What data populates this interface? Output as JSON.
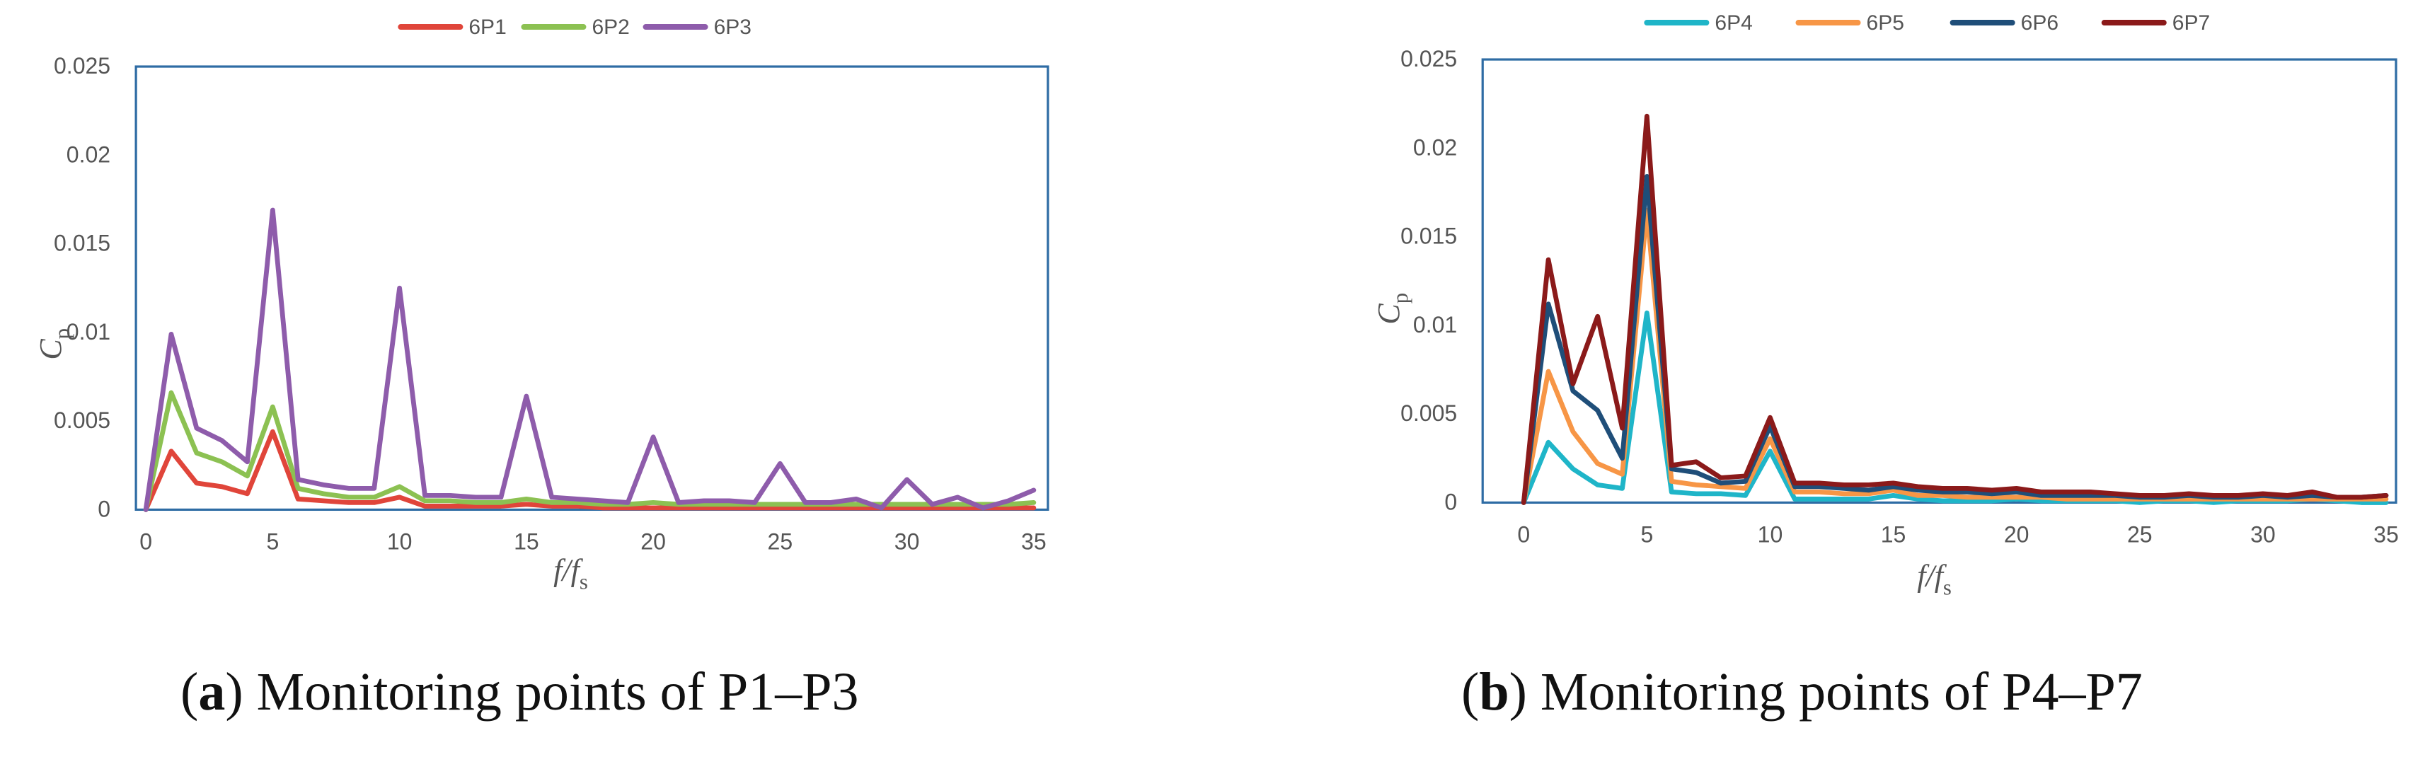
{
  "chart_data": [
    {
      "type": "line",
      "title": "",
      "xlabel": "f/f",
      "xlabel_sub": "s",
      "ylabel": "C",
      "ylabel_sub": "p",
      "xlim": [
        0,
        35
      ],
      "ylim": [
        0,
        0.025
      ],
      "x_ticks": [
        0,
        5,
        10,
        15,
        20,
        25,
        30,
        35
      ],
      "y_ticks": [
        0,
        0.005,
        0.01,
        0.015,
        0.02,
        0.025
      ],
      "y_tick_labels": [
        "0",
        "0.005",
        "0.01",
        "0.015",
        "0.02",
        "0.025"
      ],
      "grid": false,
      "legend_position": "top",
      "x": [
        0,
        1,
        2,
        3,
        4,
        5,
        6,
        7,
        8,
        9,
        10,
        11,
        12,
        13,
        14,
        15,
        16,
        17,
        18,
        19,
        20,
        21,
        22,
        23,
        24,
        25,
        26,
        27,
        28,
        29,
        30,
        31,
        32,
        33,
        34,
        35
      ],
      "series": [
        {
          "name": "6P1",
          "color": "#e0453a",
          "values": [
            0,
            0.0033,
            0.0015,
            0.0013,
            0.0009,
            0.0044,
            0.0006,
            0.0005,
            0.0004,
            0.0004,
            0.0007,
            0.0002,
            0.0002,
            0.0002,
            0.0002,
            0.0003,
            0.0002,
            0.0002,
            0.0001,
            0.0001,
            0.0001,
            0.0001,
            0.0001,
            0.0001,
            0.0001,
            0.0001,
            0.0001,
            0.0001,
            0.0001,
            0.0001,
            0.0001,
            0.0001,
            0.0001,
            0.0001,
            0.0001,
            0.0001
          ]
        },
        {
          "name": "6P2",
          "color": "#8cc152",
          "values": [
            0,
            0.0066,
            0.0032,
            0.0027,
            0.0019,
            0.0058,
            0.0012,
            0.0009,
            0.0007,
            0.0007,
            0.0013,
            0.0005,
            0.0005,
            0.0004,
            0.0004,
            0.0006,
            0.0004,
            0.0004,
            0.0003,
            0.0003,
            0.0004,
            0.0003,
            0.0003,
            0.0003,
            0.0003,
            0.0003,
            0.0003,
            0.0003,
            0.0003,
            0.0003,
            0.0003,
            0.0003,
            0.0003,
            0.0003,
            0.0003,
            0.0004
          ]
        },
        {
          "name": "6P3",
          "color": "#8e5cab",
          "values": [
            0,
            0.0099,
            0.0046,
            0.0039,
            0.0027,
            0.0169,
            0.0017,
            0.0014,
            0.0012,
            0.0012,
            0.0125,
            0.0008,
            0.0008,
            0.0007,
            0.0007,
            0.0064,
            0.0007,
            0.0006,
            0.0005,
            0.0004,
            0.0041,
            0.0004,
            0.0005,
            0.0005,
            0.0004,
            0.0026,
            0.0004,
            0.0004,
            0.0006,
            0.0001,
            0.0017,
            0.0003,
            0.0007,
            0.0001,
            0.0005,
            0.0011
          ]
        }
      ]
    },
    {
      "type": "line",
      "title": "",
      "xlabel": "f/f",
      "xlabel_sub": "s",
      "ylabel": "C",
      "ylabel_sub": "p",
      "xlim": [
        0,
        35
      ],
      "ylim": [
        0,
        0.025
      ],
      "x_ticks": [
        0,
        5,
        10,
        15,
        20,
        25,
        30,
        35
      ],
      "y_ticks": [
        0,
        0.005,
        0.01,
        0.015,
        0.02,
        0.025
      ],
      "y_tick_labels": [
        "0",
        "0.005",
        "0.01",
        "0.015",
        "0.02",
        "0.025"
      ],
      "grid": false,
      "legend_position": "top",
      "x": [
        0,
        1,
        2,
        3,
        4,
        5,
        6,
        7,
        8,
        9,
        10,
        11,
        12,
        13,
        14,
        15,
        16,
        17,
        18,
        19,
        20,
        21,
        22,
        23,
        24,
        25,
        26,
        27,
        28,
        29,
        30,
        31,
        32,
        33,
        34,
        35
      ],
      "series": [
        {
          "name": "6P4",
          "color": "#1fb5c8",
          "values": [
            0,
            0.0034,
            0.0019,
            0.001,
            0.0008,
            0.0107,
            0.0006,
            0.0005,
            0.0005,
            0.0004,
            0.0029,
            0.0002,
            0.0002,
            0.0002,
            0.0002,
            0.0004,
            0.0002,
            0.0001,
            0.0001,
            0.0001,
            0.0002,
            0.0001,
            0.0001,
            0.0001,
            0.0001,
            0.0,
            0.0001,
            0.0001,
            0.0,
            0.0001,
            0.0001,
            0.0001,
            0.0002,
            0.0001,
            0.0,
            0.0
          ]
        },
        {
          "name": "6P5",
          "color": "#f79646",
          "values": [
            0,
            0.0074,
            0.004,
            0.0022,
            0.0016,
            0.0165,
            0.0012,
            0.001,
            0.0009,
            0.0008,
            0.0036,
            0.0006,
            0.0006,
            0.0005,
            0.0005,
            0.0007,
            0.0004,
            0.0004,
            0.0003,
            0.0003,
            0.0003,
            0.0003,
            0.0002,
            0.0002,
            0.0002,
            0.0002,
            0.0002,
            0.0002,
            0.0002,
            0.0002,
            0.0002,
            0.0002,
            0.0002,
            0.0002,
            0.0002,
            0.0002
          ]
        },
        {
          "name": "6P6",
          "color": "#1f4e79",
          "values": [
            0,
            0.0112,
            0.0063,
            0.0052,
            0.0025,
            0.0184,
            0.0019,
            0.0017,
            0.0011,
            0.0012,
            0.0043,
            0.0009,
            0.0009,
            0.0008,
            0.0007,
            0.0009,
            0.0007,
            0.0006,
            0.0006,
            0.0005,
            0.0006,
            0.0004,
            0.0004,
            0.0004,
            0.0004,
            0.0003,
            0.0003,
            0.0004,
            0.0003,
            0.0003,
            0.0004,
            0.0003,
            0.0004,
            0.0003,
            0.0003,
            0.0004
          ]
        },
        {
          "name": "6P7",
          "color": "#8b1a1a",
          "values": [
            0,
            0.0137,
            0.0067,
            0.0105,
            0.0042,
            0.0218,
            0.0021,
            0.0023,
            0.0014,
            0.0015,
            0.0048,
            0.0011,
            0.0011,
            0.001,
            0.001,
            0.0011,
            0.0009,
            0.0008,
            0.0008,
            0.0007,
            0.0008,
            0.0006,
            0.0006,
            0.0006,
            0.0005,
            0.0004,
            0.0004,
            0.0005,
            0.0004,
            0.0004,
            0.0005,
            0.0004,
            0.0006,
            0.0003,
            0.0003,
            0.0004
          ]
        }
      ]
    }
  ],
  "captions": [
    {
      "letter": "a",
      "text": " Monitoring points of P1–P3"
    },
    {
      "letter": "b",
      "text": " Monitoring points of P4–P7"
    }
  ]
}
